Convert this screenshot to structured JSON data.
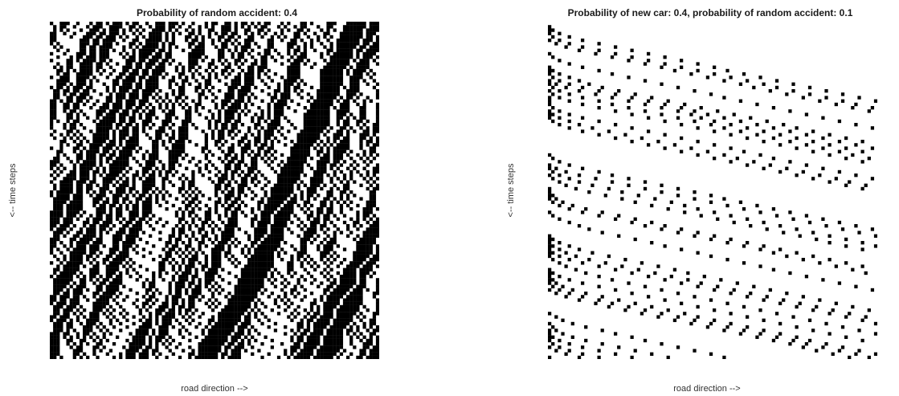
{
  "chart_data": [
    {
      "type": "heatmap",
      "title": "Probability of random accident: 0.4",
      "xlabel": "road direction -->",
      "ylabel": "<-- time steps",
      "color_occupied": "#000000",
      "color_empty": "#ffffff",
      "grid": false,
      "model": {
        "cells": 100,
        "steps": 100,
        "seed": 7,
        "max_speed": 5,
        "init_density": 0.5,
        "p_random_slowdown": 0.4,
        "boundary": "periodic"
      }
    },
    {
      "type": "heatmap",
      "title": "Probability of new car: 0.4, probability of random accident: 0.1",
      "xlabel": "road direction -->",
      "ylabel": "<-- time steps",
      "color_occupied": "#000000",
      "color_empty": "#ffffff",
      "grid": false,
      "model": {
        "cells": 100,
        "steps": 100,
        "seed": 13,
        "max_speed": 5,
        "init_density": 0.0,
        "p_new_car": 0.4,
        "p_random_slowdown": 0.1,
        "boundary": "open"
      }
    }
  ]
}
